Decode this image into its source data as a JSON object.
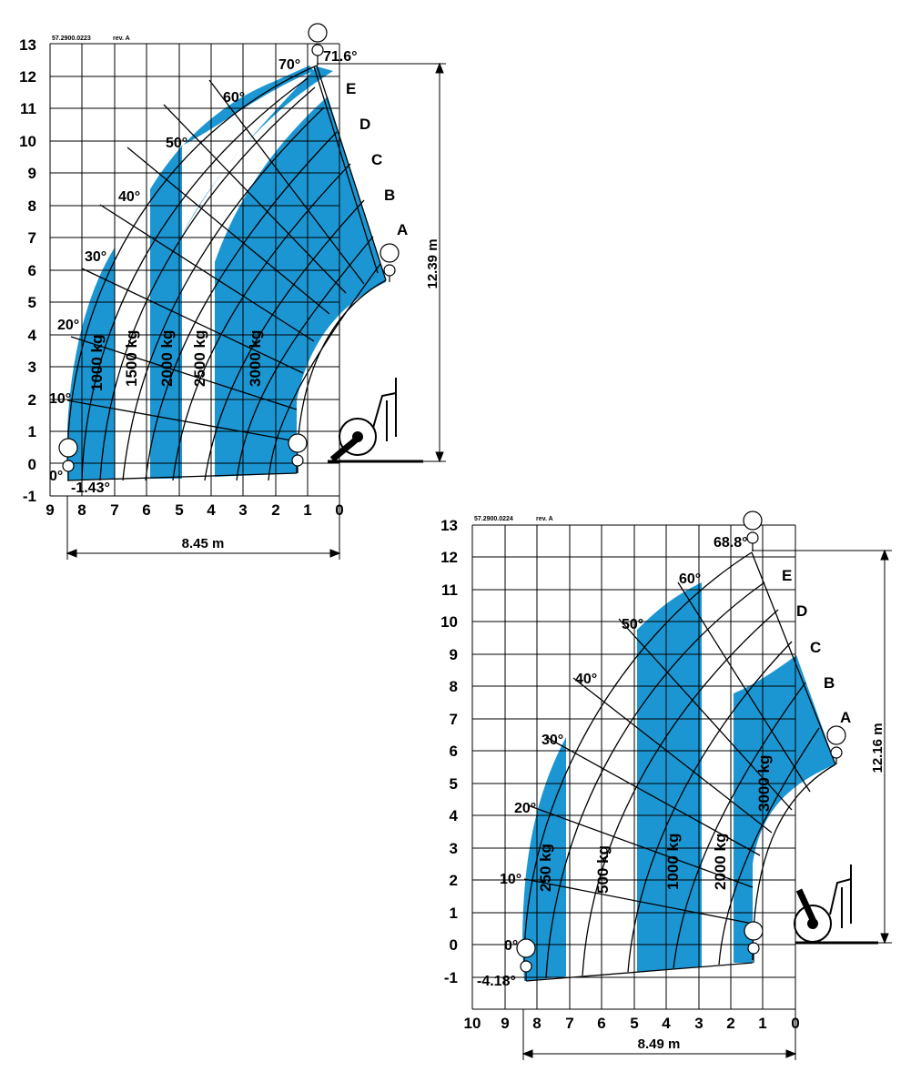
{
  "charts": [
    {
      "id": "chart1",
      "drawing_code": "57.2900.0223",
      "revision": "rev. A",
      "x_ticks": [
        "9",
        "8",
        "7",
        "6",
        "5",
        "4",
        "3",
        "2",
        "1",
        "0"
      ],
      "y_ticks": [
        "-1",
        "0",
        "1",
        "2",
        "3",
        "4",
        "5",
        "6",
        "7",
        "8",
        "9",
        "10",
        "11",
        "12",
        "13"
      ],
      "angles": [
        "0°",
        "10°",
        "20°",
        "30°",
        "40°",
        "50°",
        "60°",
        "70°"
      ],
      "min_angle": "-1.43°",
      "max_angle": "71.6°",
      "zones": [
        "A",
        "B",
        "C",
        "D",
        "E"
      ],
      "loads": [
        "1000 kg",
        "1500 kg",
        "2000 kg",
        "2500 kg",
        "3000 kg"
      ],
      "max_height": "12.39 m",
      "max_reach": "8.45 m"
    },
    {
      "id": "chart2",
      "drawing_code": "57.2900.0224",
      "revision": "rev. A",
      "x_ticks": [
        "10",
        "9",
        "8",
        "7",
        "6",
        "5",
        "4",
        "3",
        "2",
        "1",
        "0"
      ],
      "y_ticks": [
        "-1",
        "0",
        "1",
        "2",
        "3",
        "4",
        "5",
        "6",
        "7",
        "8",
        "9",
        "10",
        "11",
        "12",
        "13"
      ],
      "angles": [
        "0°",
        "10°",
        "20°",
        "30°",
        "40°",
        "50°",
        "60°"
      ],
      "min_angle": "-4.18°",
      "max_angle": "68.8°",
      "zones": [
        "A",
        "B",
        "C",
        "D",
        "E"
      ],
      "loads": [
        "250 kg",
        "500 kg",
        "1000 kg",
        "2000 kg",
        "3000 kg"
      ],
      "max_height": "12.16 m",
      "max_reach": "8.49 m"
    }
  ],
  "colors": {
    "fill": "#1b96d2",
    "line": "#000000",
    "background": "#ffffff"
  }
}
